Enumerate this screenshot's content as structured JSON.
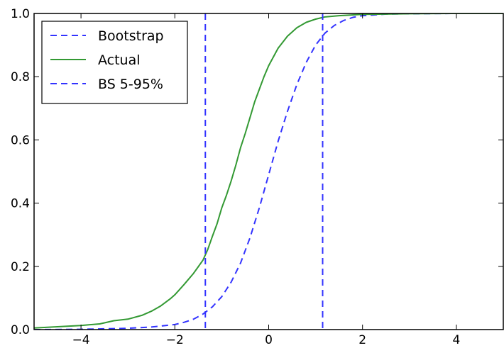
{
  "chart_data": {
    "type": "line",
    "title": "",
    "xlabel": "",
    "ylabel": "",
    "xlim": [
      -5,
      5
    ],
    "ylim": [
      0,
      1
    ],
    "x_ticks": [
      -4,
      -2,
      0,
      2,
      4
    ],
    "x_tick_labels": [
      "−4",
      "−2",
      "0",
      "2",
      "4"
    ],
    "y_ticks": [
      0,
      0.2,
      0.4,
      0.6,
      0.8,
      1.0
    ],
    "y_tick_labels": [
      "0.0",
      "0.2",
      "0.4",
      "0.6",
      "0.8",
      "1.0"
    ],
    "grid": false,
    "legend_position": "upper-left",
    "series": [
      {
        "name": "Bootstrap",
        "style": "dashed",
        "color": "#3333ff",
        "x": [
          -5.0,
          -4.0,
          -3.0,
          -2.5,
          -2.0,
          -1.8,
          -1.6,
          -1.4,
          -1.2,
          -1.0,
          -0.8,
          -0.6,
          -0.4,
          -0.2,
          0.0,
          0.2,
          0.4,
          0.6,
          0.8,
          1.0,
          1.2,
          1.4,
          1.6,
          1.8,
          2.0,
          2.5,
          3.0,
          4.0,
          5.0
        ],
        "y": [
          0.0,
          0.001,
          0.004,
          0.008,
          0.016,
          0.023,
          0.033,
          0.049,
          0.072,
          0.104,
          0.15,
          0.21,
          0.29,
          0.385,
          0.49,
          0.595,
          0.69,
          0.775,
          0.845,
          0.9,
          0.938,
          0.962,
          0.978,
          0.988,
          0.993,
          0.998,
          0.999,
          1.0,
          1.0
        ]
      },
      {
        "name": "Actual",
        "style": "solid",
        "color": "#339933",
        "x": [
          -5.0,
          -4.5,
          -4.0,
          -3.6,
          -3.3,
          -3.0,
          -2.7,
          -2.5,
          -2.3,
          -2.1,
          -2.0,
          -1.8,
          -1.6,
          -1.4,
          -1.3,
          -1.2,
          -1.1,
          -1.0,
          -0.9,
          -0.8,
          -0.7,
          -0.6,
          -0.5,
          -0.4,
          -0.3,
          -0.2,
          -0.1,
          0.0,
          0.2,
          0.4,
          0.6,
          0.8,
          1.0,
          1.2,
          1.5,
          2.0,
          2.5,
          3.0,
          4.0,
          5.0
        ],
        "y": [
          0.005,
          0.009,
          0.013,
          0.018,
          0.028,
          0.033,
          0.045,
          0.058,
          0.075,
          0.097,
          0.11,
          0.143,
          0.178,
          0.22,
          0.253,
          0.295,
          0.335,
          0.385,
          0.425,
          0.47,
          0.52,
          0.575,
          0.62,
          0.67,
          0.72,
          0.76,
          0.8,
          0.835,
          0.89,
          0.928,
          0.955,
          0.972,
          0.982,
          0.989,
          0.993,
          0.997,
          0.998,
          0.999,
          1.0,
          1.0
        ]
      },
      {
        "name": "BS 5-95%",
        "style": "dashed",
        "color": "#3333ff",
        "type": "vline",
        "x_values": [
          -1.35,
          1.15
        ]
      }
    ]
  }
}
